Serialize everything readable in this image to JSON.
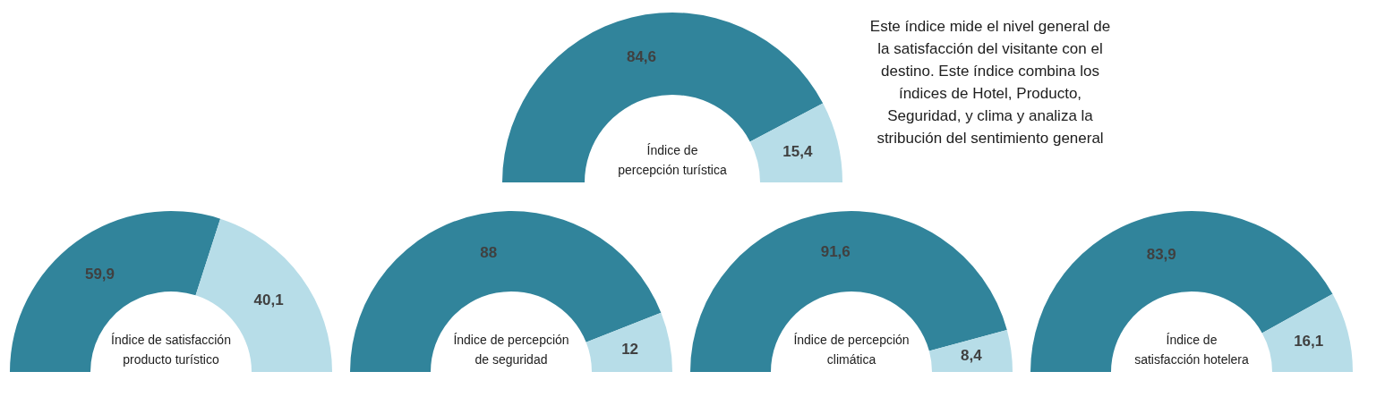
{
  "chart_data": [
    {
      "type": "donut",
      "title": "Índice de\npercepción turística",
      "categories": [
        null,
        null
      ],
      "values": [
        84.6,
        15.4
      ],
      "value_labels": [
        "84,6",
        "15,4"
      ],
      "colors": [
        "#31849b",
        "#b7dde8"
      ],
      "annotations": [
        "Este índice mide el nivel general de\nla satisfacción del visitante con el\ndestino. Este índice combina los\níndices de Hotel, Producto,\nSeguridad, y clima y analiza la\nstribución del sentimiento general"
      ]
    },
    {
      "type": "donut",
      "title": "Índice de satisfacción\nproducto turístico",
      "categories": [
        null,
        null
      ],
      "values": [
        59.9,
        40.1
      ],
      "value_labels": [
        "59,9",
        "40,1"
      ],
      "colors": [
        "#31849b",
        "#b7dde8"
      ]
    },
    {
      "type": "donut",
      "title": "Índice de percepción\nde seguridad",
      "categories": [
        null,
        null
      ],
      "values": [
        88,
        12
      ],
      "value_labels": [
        "88",
        "12"
      ],
      "colors": [
        "#31849b",
        "#b7dde8"
      ]
    },
    {
      "type": "donut",
      "title": "Índice de percepción\nclimática",
      "categories": [
        null,
        null
      ],
      "values": [
        91.6,
        8.4
      ],
      "value_labels": [
        "91,6",
        "8,4"
      ],
      "colors": [
        "#31849b",
        "#b7dde8"
      ]
    },
    {
      "type": "donut",
      "title": "Índice de\nsatisfacción hotelera",
      "categories": [
        null,
        null
      ],
      "values": [
        83.9,
        16.1
      ],
      "value_labels": [
        "83,9",
        "16,1"
      ],
      "colors": [
        "#31849b",
        "#b7dde8"
      ]
    }
  ]
}
